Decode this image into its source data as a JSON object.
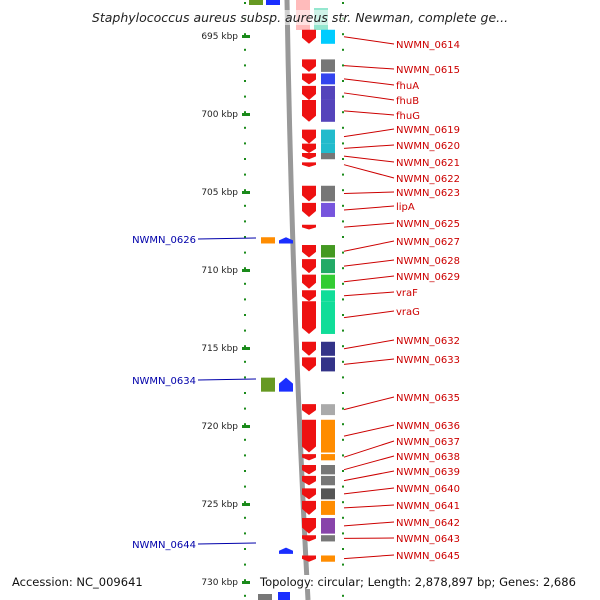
{
  "title": "Staphylococcus aureus subsp. aureus str. Newman, complete ge...",
  "footer": {
    "accession": "Accession: NC_009641",
    "topology": "Topology: circular; Length: 2,878,897 bp; Genes: 2,686"
  },
  "colors": {
    "forward_strand": "#ee1111",
    "reverse_strand": "#1a2eff",
    "right_label": "#cc0000",
    "left_label": "#0000aa",
    "tick": "#1a8a1a",
    "backbone": "#999999"
  },
  "ruler": {
    "unit": "kbp",
    "ticks": [
      {
        "kbp": 695,
        "label": "695 kbp"
      },
      {
        "kbp": 700,
        "label": "700 kbp"
      },
      {
        "kbp": 705,
        "label": "705 kbp"
      },
      {
        "kbp": 710,
        "label": "710 kbp"
      },
      {
        "kbp": 715,
        "label": "715 kbp"
      },
      {
        "kbp": 720,
        "label": "720 kbp"
      },
      {
        "kbp": 725,
        "label": "725 kbp"
      },
      {
        "kbp": 730,
        "label": "730 kbp"
      }
    ]
  },
  "right_genes": [
    {
      "label": "NWMN_0614",
      "start_kbp": 694.6,
      "end_kbp": 695.5,
      "category_color": "#00ccff"
    },
    {
      "label": "NWMN_0615",
      "start_kbp": 696.5,
      "end_kbp": 697.3,
      "category_color": "#777777"
    },
    {
      "label": "fhuA",
      "start_kbp": 697.4,
      "end_kbp": 698.1,
      "category_color": "#3344ee"
    },
    {
      "label": "fhuB",
      "start_kbp": 698.2,
      "end_kbp": 699.1,
      "category_color": "#5544bb"
    },
    {
      "label": "fhuG",
      "start_kbp": 699.1,
      "end_kbp": 700.5,
      "category_color": "#5544bb"
    },
    {
      "label": "NWMN_0619",
      "start_kbp": 701.0,
      "end_kbp": 701.9,
      "category_color": "#22bbcc"
    },
    {
      "label": "NWMN_0620",
      "start_kbp": 701.9,
      "end_kbp": 702.5,
      "category_color": "#22bbcc"
    },
    {
      "label": "NWMN_0621",
      "start_kbp": 702.5,
      "end_kbp": 702.9,
      "category_color": "#777777"
    },
    {
      "label": "NWMN_0622",
      "start_kbp": 703.1,
      "end_kbp": 703.4,
      "category_color": "#ffffff"
    },
    {
      "label": "NWMN_0623",
      "start_kbp": 704.6,
      "end_kbp": 705.6,
      "category_color": "#777777"
    },
    {
      "label": "lipA",
      "start_kbp": 705.7,
      "end_kbp": 706.6,
      "category_color": "#7755dd"
    },
    {
      "label": "NWMN_0625",
      "start_kbp": 707.1,
      "end_kbp": 707.4,
      "category_color": "#ffffff"
    },
    {
      "label": "NWMN_0627",
      "start_kbp": 708.4,
      "end_kbp": 709.2,
      "category_color": "#449922"
    },
    {
      "label": "NWMN_0628",
      "start_kbp": 709.3,
      "end_kbp": 710.2,
      "category_color": "#22aa66"
    },
    {
      "label": "NWMN_0629",
      "start_kbp": 710.3,
      "end_kbp": 711.2,
      "category_color": "#33cc33"
    },
    {
      "label": "vraF",
      "start_kbp": 711.3,
      "end_kbp": 712.0,
      "category_color": "#11dd99"
    },
    {
      "label": "vraG",
      "start_kbp": 712.0,
      "end_kbp": 714.1,
      "category_color": "#11dd99"
    },
    {
      "label": "NWMN_0632",
      "start_kbp": 714.6,
      "end_kbp": 715.5,
      "category_color": "#333388"
    },
    {
      "label": "NWMN_0633",
      "start_kbp": 715.6,
      "end_kbp": 716.5,
      "category_color": "#333388"
    },
    {
      "label": "NWMN_0635",
      "start_kbp": 718.6,
      "end_kbp": 719.3,
      "category_color": "#aaaaaa"
    },
    {
      "label": "NWMN_0636",
      "start_kbp": 719.6,
      "end_kbp": 721.7,
      "category_color": "#ff8c00"
    },
    {
      "label": "NWMN_0637",
      "start_kbp": 721.8,
      "end_kbp": 722.2,
      "category_color": "#ff8c00"
    },
    {
      "label": "NWMN_0638",
      "start_kbp": 722.5,
      "end_kbp": 723.1,
      "category_color": "#777777"
    },
    {
      "label": "NWMN_0639",
      "start_kbp": 723.2,
      "end_kbp": 723.8,
      "category_color": "#777777"
    },
    {
      "label": "NWMN_0640",
      "start_kbp": 724.0,
      "end_kbp": 724.7,
      "category_color": "#555555"
    },
    {
      "label": "NWMN_0641",
      "start_kbp": 724.8,
      "end_kbp": 725.7,
      "category_color": "#ff8c00"
    },
    {
      "label": "NWMN_0642",
      "start_kbp": 725.9,
      "end_kbp": 726.9,
      "category_color": "#8844aa"
    },
    {
      "label": "NWMN_0643",
      "start_kbp": 727.0,
      "end_kbp": 727.4,
      "category_color": "#777777"
    },
    {
      "label": "NWMN_0645",
      "start_kbp": 728.3,
      "end_kbp": 728.7,
      "category_color": "#ff8c00"
    }
  ],
  "left_genes": [
    {
      "label": "NWMN_0626",
      "start_kbp": 707.9,
      "end_kbp": 708.3,
      "category_color": "#ff8c00"
    },
    {
      "label": "NWMN_0634",
      "start_kbp": 716.9,
      "end_kbp": 717.8,
      "category_color": "#669922"
    },
    {
      "label": "NWMN_0644",
      "start_kbp": 727.8,
      "end_kbp": 728.2,
      "category_color": "#ffffff"
    }
  ]
}
